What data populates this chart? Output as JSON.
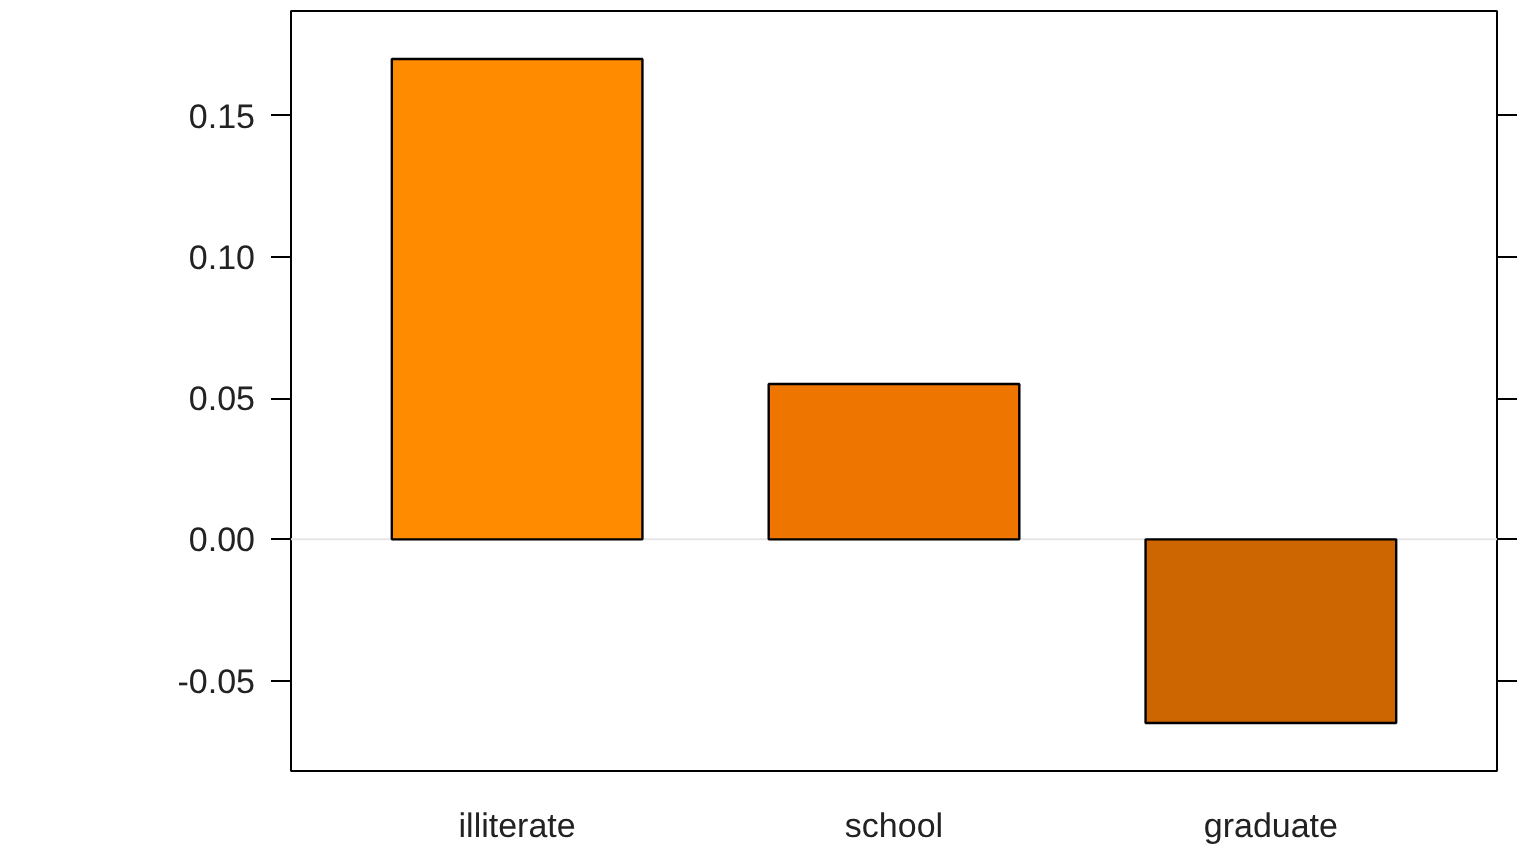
{
  "chart_data": {
    "type": "bar",
    "categories": [
      "illiterate",
      "school",
      "graduate"
    ],
    "values": [
      0.17,
      0.055,
      -0.065
    ],
    "colors": [
      "#ff8c00",
      "#ee7600",
      "#cd6600"
    ],
    "ylim": [
      -0.082,
      0.187
    ],
    "yticks": [
      {
        "value": -0.05,
        "label": "-0.05"
      },
      {
        "value": 0,
        "label": "0.00"
      },
      {
        "value": 0.05,
        "label": "0.05"
      },
      {
        "value": 0.1,
        "label": "0.10"
      },
      0.15
    ],
    "ref_lines": [
      {
        "axis": "y",
        "value": 0,
        "label": null,
        "color": "#e6e6e6"
      }
    ]
  }
}
